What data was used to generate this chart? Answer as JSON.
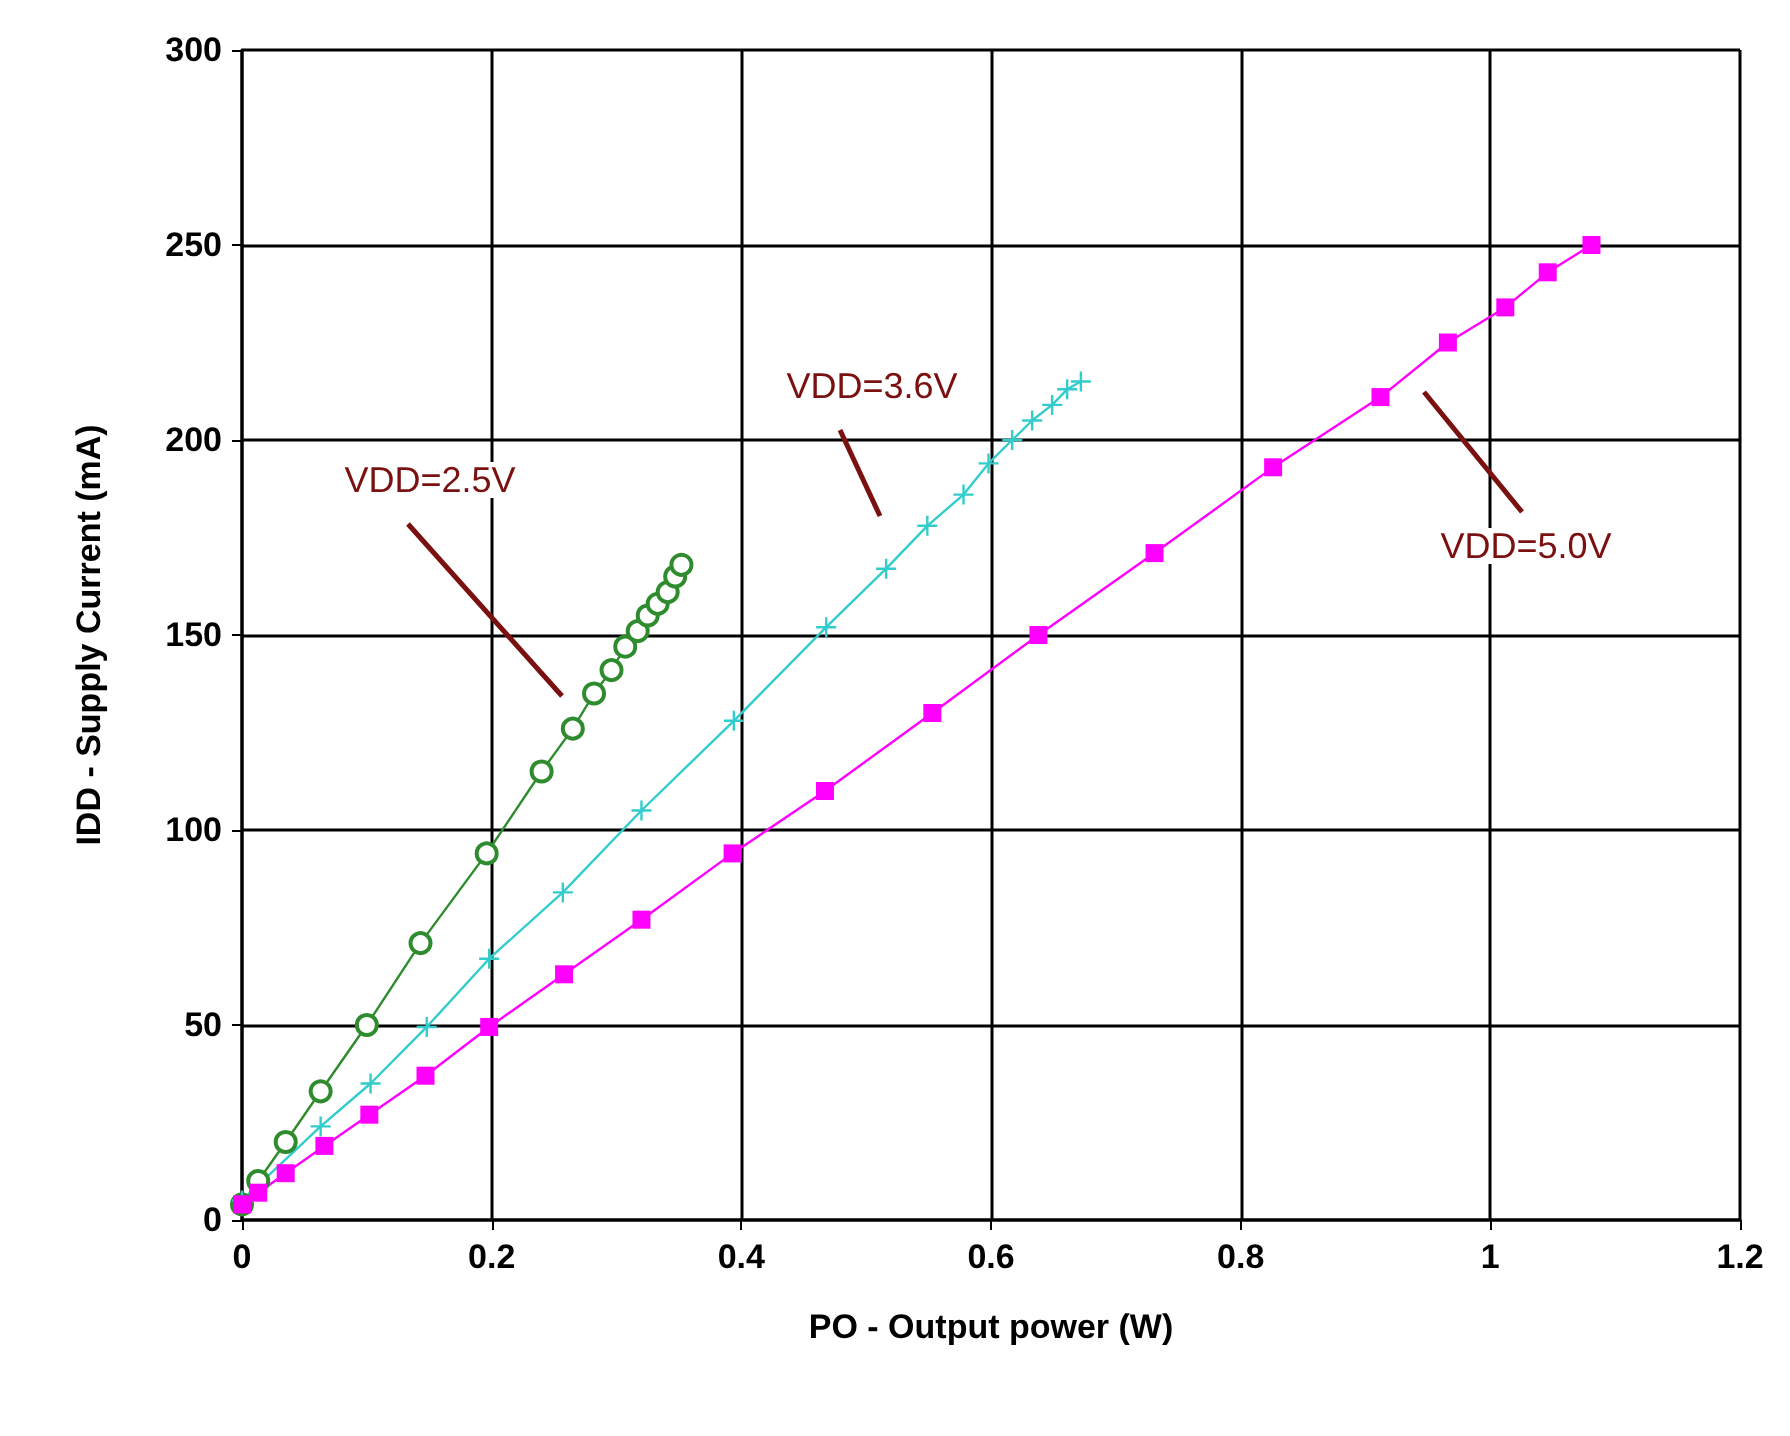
{
  "chart_data": {
    "type": "line",
    "xlabel": "PO - Output power (W)",
    "ylabel": "IDD - Supply Current (mA)",
    "xlim": [
      0,
      1.2
    ],
    "xticks": [
      0,
      0.2,
      0.4,
      0.6,
      0.8,
      1,
      1.2
    ],
    "ylim": [
      0,
      300
    ],
    "yticks": [
      0,
      50,
      100,
      150,
      200,
      250,
      300
    ],
    "grid": true,
    "series": [
      {
        "color": "#2e8b2e",
        "marker": "circle",
        "x": [
          0,
          0.013,
          0.035,
          0.063,
          0.1,
          0.143,
          0.196,
          0.24,
          0.265,
          0.282,
          0.296,
          0.307,
          0.317,
          0.325,
          0.333,
          0.341,
          0.347,
          0.352
        ],
        "values": [
          4,
          10,
          20,
          33,
          50,
          71,
          94,
          115,
          126,
          135,
          141,
          147,
          151,
          155,
          158,
          161,
          165,
          168
        ]
      },
      {
        "color": "#33cccc",
        "marker": "cross",
        "x": [
          0,
          0.063,
          0.103,
          0.148,
          0.198,
          0.257,
          0.32,
          0.394,
          0.468,
          0.516,
          0.549,
          0.578,
          0.598,
          0.617,
          0.633,
          0.649,
          0.661,
          0.672
        ],
        "values": [
          5,
          24,
          35,
          49.5,
          67,
          84,
          105,
          128,
          152,
          167,
          178,
          186,
          194,
          200,
          205,
          209,
          213,
          215
        ]
      },
      {
        "color": "#ff00ff",
        "marker": "square",
        "x": [
          0,
          0.013,
          0.035,
          0.066,
          0.102,
          0.147,
          0.198,
          0.258,
          0.32,
          0.393,
          0.467,
          0.553,
          0.638,
          0.731,
          0.826,
          0.912,
          0.966,
          1.012,
          1.046,
          1.081
        ],
        "values": [
          4,
          7,
          12,
          19,
          27,
          37,
          49.5,
          63,
          77,
          94,
          110,
          130,
          150,
          171,
          193,
          211,
          225,
          234,
          243,
          250
        ]
      }
    ],
    "annotations": [
      "VDD=2.5V",
      "VDD=3.6V",
      "VDD=5.0V"
    ]
  }
}
